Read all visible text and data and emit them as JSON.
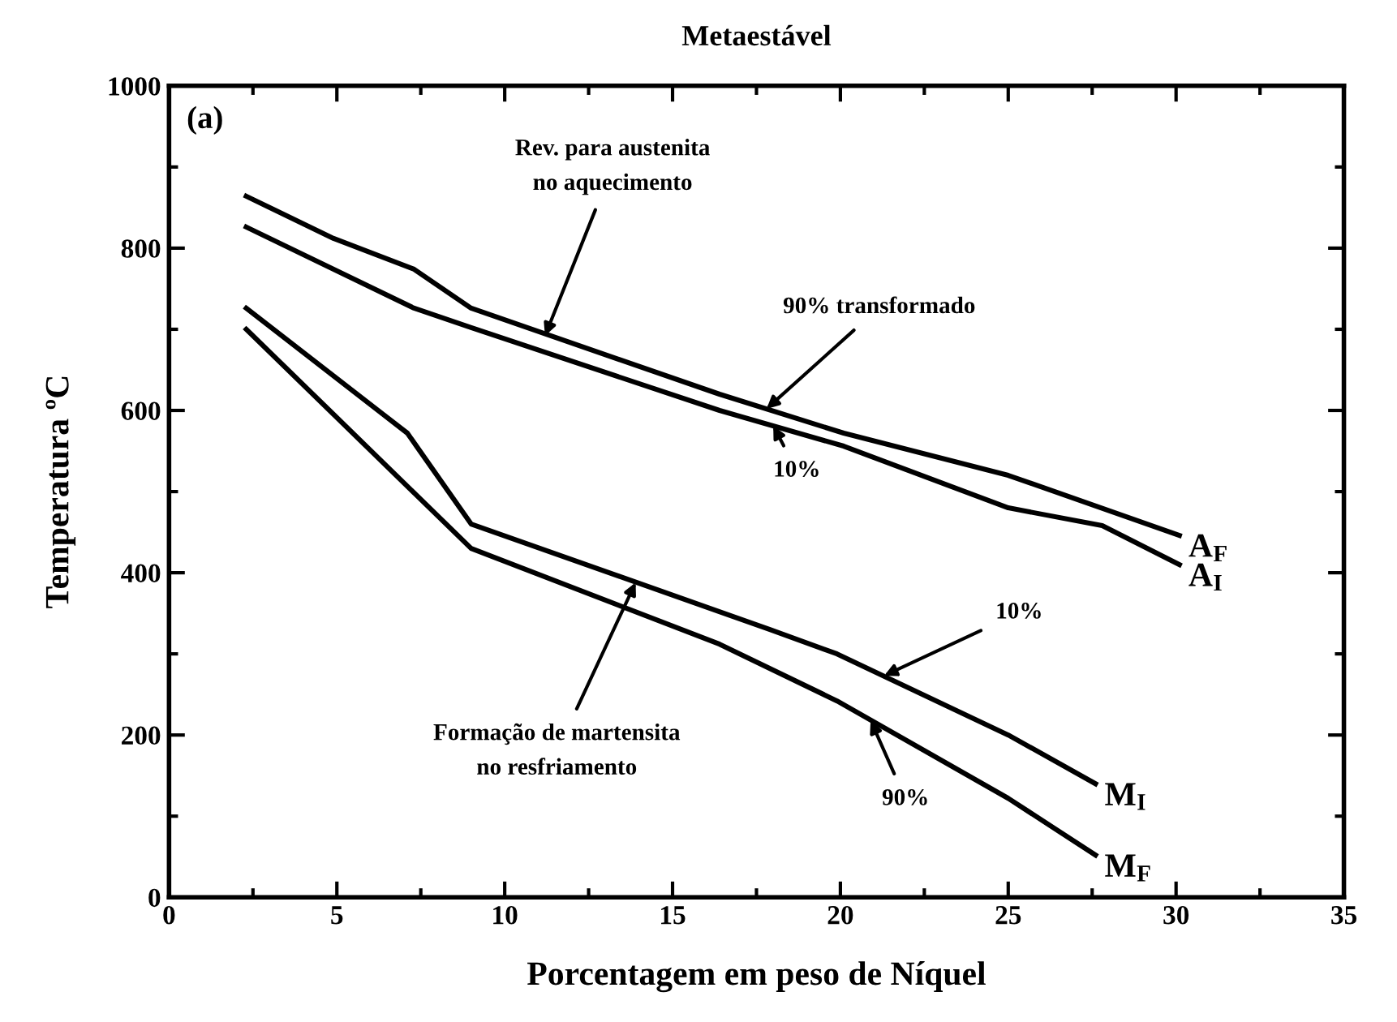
{
  "chart_data": {
    "type": "line",
    "title": "Metaestável",
    "xlabel": "Porcentagem em peso de Níquel",
    "ylabel": "Temperatura ºC",
    "xlim": [
      0,
      35
    ],
    "xticks": [
      0,
      5,
      10,
      15,
      20,
      25,
      30,
      35
    ],
    "ylim": [
      0,
      1000
    ],
    "yticks": [
      0,
      200,
      400,
      600,
      800,
      1000
    ],
    "grid": false,
    "legend": false,
    "marker": "none",
    "line_style": "solid",
    "series": [
      {
        "name": "A$_{F}$",
        "color": "#000000",
        "x": [
          2.3,
          4.9,
          7.3,
          9.0,
          16.4,
          20.1,
          25.0,
          30.1
        ],
        "values": [
          864,
          812,
          774,
          726,
          620,
          572,
          520,
          446
        ]
      },
      {
        "name": "A$_{I}$",
        "color": "#000000",
        "x": [
          2.3,
          7.3,
          9.0,
          16.4,
          20.1,
          25.0,
          27.8,
          30.1
        ],
        "values": [
          826,
          726,
          702,
          600,
          556,
          480,
          458,
          410
        ]
      },
      {
        "name": "M$_{I}$",
        "color": "#000000",
        "x": [
          2.3,
          7.1,
          9.0,
          17.9,
          19.9,
          25.0,
          27.6
        ],
        "values": [
          726,
          572,
          460,
          330,
          300,
          200,
          140
        ]
      },
      {
        "name": "M$_{F}$",
        "color": "#000000",
        "x": [
          2.3,
          9.0,
          16.4,
          19.9,
          25.0,
          27.6
        ],
        "values": [
          700,
          430,
          312,
          242,
          122,
          52
        ]
      }
    ],
    "annotations": [
      {
        "text": "Rev. para austenita\nno aquecimento",
        "x": 11.2,
        "y": 692
      },
      {
        "text": "90% transformado",
        "x": 17.8,
        "y": 602
      },
      {
        "text": "10%",
        "x": 18.0,
        "y": 581
      },
      {
        "text": "10%",
        "x": 21.3,
        "y": 273
      },
      {
        "text": "Formação de martensita\nno resfriamento",
        "x": 13.9,
        "y": 388
      },
      {
        "text": "90%",
        "x": 20.9,
        "y": 218
      },
      "(a)"
    ]
  }
}
